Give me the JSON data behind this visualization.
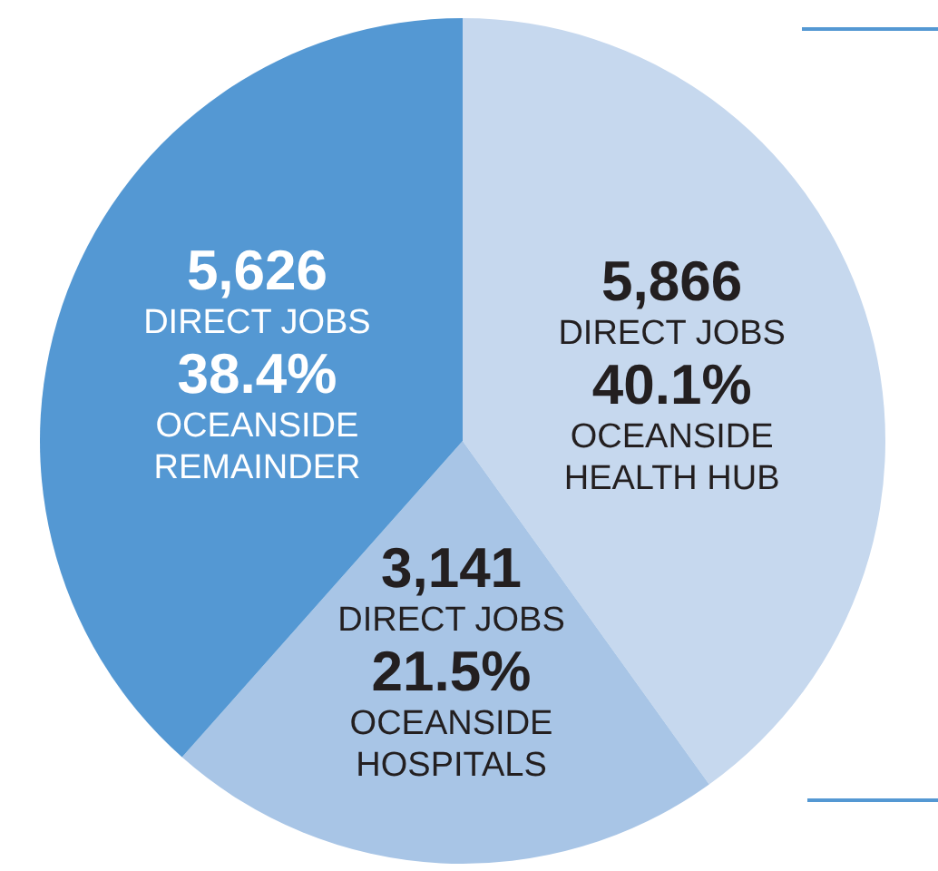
{
  "chart_data": {
    "type": "pie",
    "categories": [
      "OCEANSIDE HEALTH HUB",
      "OCEANSIDE HOSPITALS",
      "OCEANSIDE REMAINDER"
    ],
    "values": [
      5866,
      3141,
      5626
    ],
    "value_labels": [
      "5,866",
      "3,141",
      "5,626"
    ],
    "colors": [
      "#c6d8ee",
      "#a8c5e6",
      "#5498d3"
    ],
    "annotations": [
      {
        "text": "DIRECT JOBS",
        "x": "OCEANSIDE HEALTH HUB"
      },
      {
        "text": "40.1%",
        "x": "OCEANSIDE HEALTH HUB"
      },
      {
        "text": "DIRECT JOBS",
        "x": "OCEANSIDE HOSPITALS"
      },
      {
        "text": "21.5%",
        "x": "OCEANSIDE HOSPITALS"
      },
      {
        "text": "DIRECT JOBS",
        "x": "OCEANSIDE REMAINDER"
      },
      {
        "text": "38.4%",
        "x": "OCEANSIDE REMAINDER"
      }
    ]
  }
}
